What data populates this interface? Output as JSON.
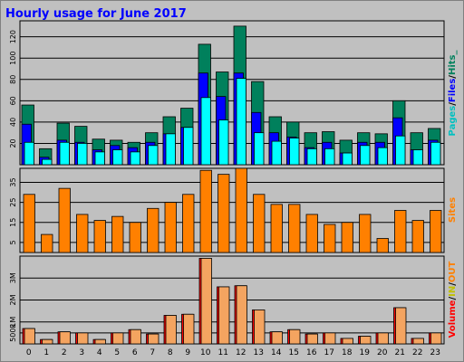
{
  "chart_data": [
    {
      "type": "bar",
      "title": "Hourly usage for June 2017",
      "ylabel_parts": [
        "Pages",
        "/",
        "Files",
        "/",
        "Hits",
        "_"
      ],
      "categories": [
        "0",
        "1",
        "2",
        "3",
        "4",
        "5",
        "6",
        "7",
        "8",
        "9",
        "10",
        "11",
        "12",
        "13",
        "14",
        "15",
        "16",
        "17",
        "18",
        "19",
        "20",
        "21",
        "22",
        "23"
      ],
      "ylim": [
        0,
        135
      ],
      "yticks": [
        "20",
        "40",
        "60",
        "80",
        "100",
        "120"
      ],
      "series": [
        {
          "name": "Hits",
          "color": "#00805c",
          "values": [
            56,
            15,
            39,
            36,
            24,
            23,
            21,
            30,
            45,
            53,
            113,
            87,
            130,
            78,
            45,
            40,
            30,
            31,
            23,
            30,
            29,
            60,
            30,
            34
          ]
        },
        {
          "name": "Files",
          "color": "#0000ff",
          "values": [
            38,
            7,
            23,
            21,
            14,
            18,
            16,
            21,
            29,
            35,
            86,
            64,
            86,
            49,
            30,
            26,
            16,
            21,
            11,
            21,
            21,
            44,
            14,
            23
          ]
        },
        {
          "name": "Pages",
          "color": "#00ffff",
          "values": [
            21,
            5,
            21,
            20,
            12,
            14,
            12,
            18,
            29,
            35,
            63,
            42,
            81,
            30,
            22,
            25,
            15,
            15,
            11,
            18,
            16,
            27,
            14,
            21
          ]
        }
      ]
    },
    {
      "type": "bar",
      "ylabel": "Sites",
      "categories": [
        "0",
        "1",
        "2",
        "3",
        "4",
        "5",
        "6",
        "7",
        "8",
        "9",
        "10",
        "11",
        "12",
        "13",
        "14",
        "15",
        "16",
        "17",
        "18",
        "19",
        "20",
        "21",
        "22",
        "23"
      ],
      "ylim": [
        0,
        42
      ],
      "yticks": [
        "5",
        "15",
        "25",
        "35"
      ],
      "series": [
        {
          "name": "Sites",
          "color": "#ff8000",
          "values": [
            29,
            9,
            32,
            19,
            16,
            18,
            15,
            22,
            25,
            29,
            41,
            39,
            42,
            29,
            24,
            24,
            19,
            14,
            15,
            19,
            7,
            21,
            16,
            21
          ]
        }
      ]
    },
    {
      "type": "bar",
      "ylabel_parts": [
        "Volume",
        "/",
        "IN",
        "/",
        "OUT"
      ],
      "categories": [
        "0",
        "1",
        "2",
        "3",
        "4",
        "5",
        "6",
        "7",
        "8",
        "9",
        "10",
        "11",
        "12",
        "13",
        "14",
        "15",
        "16",
        "17",
        "18",
        "19",
        "20",
        "21",
        "22",
        "23"
      ],
      "ylim": [
        0,
        4000
      ],
      "yticks": [
        "500k",
        "1M",
        "2M",
        "3M"
      ],
      "ytick_values": [
        500,
        1000,
        2000,
        3000
      ],
      "series": [
        {
          "name": "Volume",
          "color": "#ff0000",
          "values": [
            700,
            200,
            550,
            500,
            200,
            500,
            650,
            450,
            1300,
            1350,
            3900,
            2600,
            2650,
            1550,
            550,
            650,
            450,
            500,
            250,
            350,
            500,
            1650,
            250,
            500
          ]
        },
        {
          "name": "OUT",
          "color": "#f4a460",
          "values": [
            700,
            200,
            550,
            500,
            200,
            500,
            650,
            450,
            1300,
            1350,
            3900,
            2600,
            2650,
            1550,
            550,
            650,
            450,
            500,
            250,
            350,
            500,
            1650,
            250,
            500
          ]
        }
      ]
    }
  ],
  "colors": {
    "background": "#c0c0c0",
    "panel_border": "#000000",
    "title": "#0000ff",
    "label_in": "#c0c000"
  }
}
